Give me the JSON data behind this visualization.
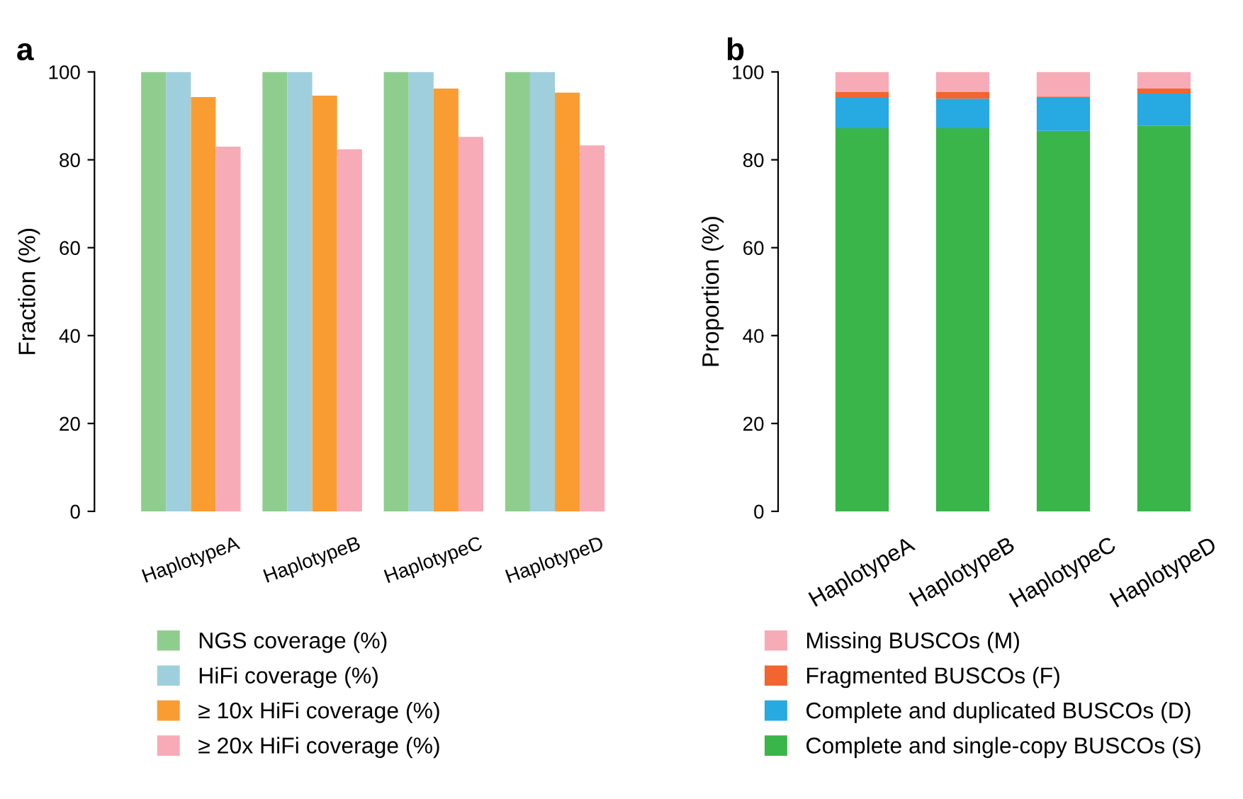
{
  "chart_data": [
    {
      "type": "bar",
      "title": "a",
      "ylabel": "Fraction (%)",
      "categories": [
        "HaplotypeA",
        "HaplotypeB",
        "HaplotypeC",
        "HaplotypeD"
      ],
      "ylim": [
        0,
        100
      ],
      "yticks": [
        0,
        20,
        40,
        60,
        80,
        100
      ],
      "grid": false,
      "legend": "bottom",
      "series": [
        {
          "name": "NGS coverage (%)",
          "color": "#8fcd8f",
          "values": [
            100,
            100,
            100,
            100
          ]
        },
        {
          "name": "HiFi coverage (%)",
          "color": "#9fcfdc",
          "values": [
            100,
            100,
            100,
            100
          ]
        },
        {
          "name": "≥ 10x HiFi coverage (%)",
          "color": "#f99d32",
          "values": [
            94.3,
            94.6,
            96.2,
            95.3
          ]
        },
        {
          "name": "≥ 20x HiFi coverage (%)",
          "color": "#f7abb7",
          "values": [
            83.0,
            82.4,
            85.2,
            83.3
          ]
        }
      ]
    },
    {
      "type": "bar",
      "title": "b",
      "ylabel": "Proportion (%)",
      "stacked": true,
      "categories": [
        "HaplotypeA",
        "HaplotypeB",
        "HaplotypeC",
        "HaplotypeD"
      ],
      "ylim": [
        0,
        100
      ],
      "yticks": [
        0,
        20,
        40,
        60,
        80,
        100
      ],
      "grid": false,
      "legend": "bottom",
      "series": [
        {
          "name": "Complete and single-copy BUSCOs (S)",
          "color": "#3ab54a",
          "values": [
            87.2,
            87.2,
            86.6,
            87.8
          ]
        },
        {
          "name": "Complete and duplicated BUSCOs (D)",
          "color": "#27a9e1",
          "values": [
            6.9,
            6.7,
            7.5,
            7.3
          ]
        },
        {
          "name": "Fragmented BUSCOs (F)",
          "color": "#f26530",
          "values": [
            1.3,
            1.5,
            0.3,
            1.1
          ]
        },
        {
          "name": "Missing BUSCOs (M)",
          "color": "#f7abb7",
          "values": [
            4.6,
            4.6,
            5.6,
            3.8
          ]
        }
      ]
    }
  ]
}
